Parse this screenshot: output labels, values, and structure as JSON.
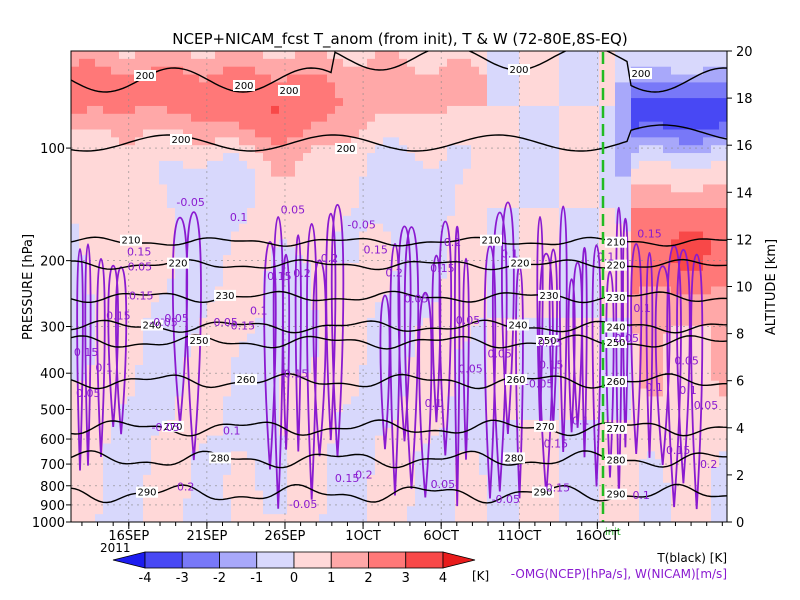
{
  "chart_data": {
    "type": "heatmap",
    "title": "NCEP+NICAM_fcst T_anom (from init), T & W   (72-80E,8S-EQ)",
    "ylabel_left": "PRESSURE [hPa]",
    "ylabel_right": "ALTITUDE [km]",
    "pressure_ticks": [
      "100",
      "200",
      "300",
      "400",
      "500",
      "600",
      "700",
      "800",
      "900",
      "1000"
    ],
    "altitude_ticks": [
      "0",
      "2",
      "4",
      "6",
      "8",
      "10",
      "12",
      "14",
      "16",
      "18",
      "20"
    ],
    "date_ticks": [
      "16SEP",
      "21SEP",
      "26SEP",
      "1OCT",
      "6OCT",
      "11OCT",
      "16OCT"
    ],
    "year_label": "2011",
    "init_label": "init",
    "colorbar": {
      "ticks": [
        "-4",
        "-3",
        "-2",
        "-1",
        "0",
        "1",
        "2",
        "3",
        "4"
      ],
      "unit": "[K]",
      "colors": [
        "#1c1cf0",
        "#4848f4",
        "#7878f8",
        "#a8a8fa",
        "#d8d8fc",
        "#ffd8d8",
        "#ffa8a8",
        "#ff7878",
        "#f84848",
        "#e81c1c"
      ]
    },
    "legend": {
      "temperature": "T(black) [K]",
      "omega": "-OMG(NCEP)[hPa/s], W(NICAM)[m/s]"
    },
    "temperature_contours": [
      {
        "value": "200",
        "labels": 6
      },
      {
        "value": "210",
        "pressure_hPa": 178
      },
      {
        "value": "220",
        "pressure_hPa": 205
      },
      {
        "value": "230",
        "pressure_hPa": 250
      },
      {
        "value": "240",
        "pressure_hPa": 300
      },
      {
        "value": "250",
        "pressure_hPa": 330
      },
      {
        "value": "260",
        "pressure_hPa": 420
      },
      {
        "value": "270",
        "pressure_hPa": 560
      },
      {
        "value": "280",
        "pressure_hPa": 680
      },
      {
        "value": "290",
        "pressure_hPa": 840
      }
    ],
    "omega_labels": [
      "0.05",
      "0.1",
      "0.15",
      "0.2",
      "-0.05"
    ]
  }
}
